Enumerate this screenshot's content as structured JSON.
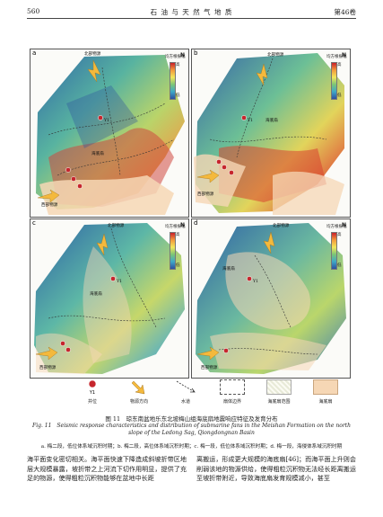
{
  "header": {
    "page_number": "560",
    "journal_title": "石 油 与 天 然 气 地 质",
    "volume": "第46卷"
  },
  "panels": [
    {
      "label": "a",
      "north_source": "北部物源",
      "west_source": "西部物源",
      "channel": "海底扇",
      "well": "Y1",
      "colorbar_title": "均方根振幅",
      "high": "高",
      "low": "低"
    },
    {
      "label": "b",
      "north_source": "北部物源",
      "west_source": "西部物源",
      "channel": "海底扇",
      "well": "Y1",
      "colorbar_title": "均方根振幅",
      "high": "高",
      "low": "低"
    },
    {
      "label": "c",
      "north_source": "北部物源",
      "west_source": "西部物源",
      "channel": "海底扇",
      "well": "Y1",
      "colorbar_title": "均方根振幅",
      "high": "高",
      "low": "低"
    },
    {
      "label": "d",
      "north_source": "北部物源",
      "west_source": "西部物源",
      "channel": "海底扇",
      "well": "Y1",
      "colorbar_title": "均方根振幅",
      "high": "高",
      "low": "低"
    }
  ],
  "legend": [
    {
      "symbol": "well",
      "text": "井位",
      "sub": "Y1"
    },
    {
      "symbol": "arrow",
      "text": "物源方向"
    },
    {
      "symbol": "channel",
      "text": "水道"
    },
    {
      "symbol": "boundary",
      "text": "扇体边界"
    },
    {
      "symbol": "fan-area",
      "text": "海底扇范围"
    },
    {
      "symbol": "fan-fill",
      "text": "海底扇"
    }
  ],
  "colors": {
    "arrow": "#f4b93c",
    "fan_fill": "#f6d7b5",
    "well": "#c6262d",
    "channel": "#333333"
  },
  "caption": {
    "zh": "图 11　琼东南盆地乐东北坡梅山组海底扇地震响应特征及发育分布",
    "en": "Fig. 11　Seismic response characteristics and distribution of submarine fans in the Meishan Formation on the north slope of the Ledong Sag, Qiongdongnan Basin",
    "sub": "a. 梅二段，低位体系域沉积时期；b. 梅二段，高位体系域沉积时期；c. 梅一段，低位体系域沉积时期；d. 梅一段，海侵体系域沉积时期"
  },
  "body": {
    "left": "海平面变化密切相关。海平面快速下降造成斜坡折带区地层大规模暴露，坡折带之上河流下切作用明显，提供了充足的物源，使得粗粒沉积物能够在盆地中长距",
    "right": "离搬运，形成更大规模的海底扇[46]；而海平面上升则会削弱该地的物源供给，使得粗粒沉积物无法经长距离搬运至坡折带附近，导致海底扇发育规模减小，甚至"
  }
}
